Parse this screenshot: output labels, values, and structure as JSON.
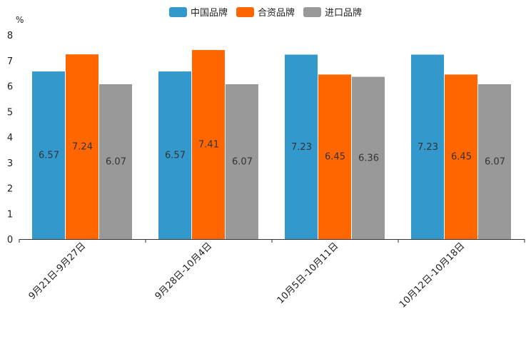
{
  "chart_data": {
    "type": "bar",
    "title": "",
    "unit_label": "%",
    "categories": [
      "9月21日-9月27日",
      "9月28日-10月4日",
      "10月5日-10月11日",
      "10月12日-10月18日"
    ],
    "series": [
      {
        "name": "中国品牌",
        "color": "#3399cc",
        "values": [
          6.57,
          6.57,
          7.23,
          7.23
        ]
      },
      {
        "name": "合资品牌",
        "color": "#ff6600",
        "values": [
          7.24,
          7.41,
          6.45,
          6.45
        ]
      },
      {
        "name": "进口品牌",
        "color": "#999999",
        "values": [
          6.07,
          6.07,
          6.36,
          6.07
        ]
      }
    ],
    "ylim": [
      0,
      8
    ],
    "yticks": [
      0,
      1,
      2,
      3,
      4,
      5,
      6,
      7,
      8
    ],
    "legend_position": "top-center",
    "grid": false
  }
}
